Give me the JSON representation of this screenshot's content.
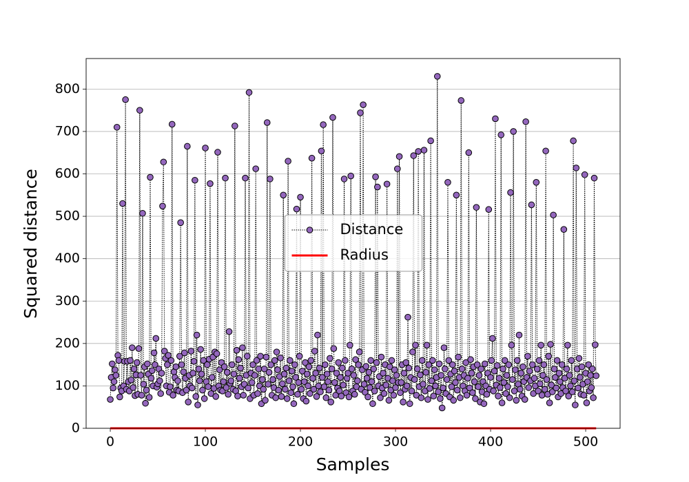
{
  "chart_data": {
    "type": "line",
    "xlabel": "Samples",
    "ylabel": "Squared distance",
    "xlim": [
      -25.4,
      536.2
    ],
    "ylim": [
      0,
      872
    ],
    "xticks": [
      0,
      100,
      200,
      300,
      400,
      500
    ],
    "yticks": [
      0,
      100,
      200,
      300,
      400,
      500,
      600,
      700,
      800
    ],
    "grid": "y",
    "legend": "center",
    "series": [
      {
        "name": "Distance",
        "color": "#9467bd",
        "line_color": "#000000",
        "marker": "o",
        "values": [
          68,
          120,
          152,
          95,
          110,
          138,
          125,
          710,
          172,
          160,
          74,
          95,
          88,
          530,
          100,
          158,
          775,
          92,
          158,
          110,
          88,
          160,
          114,
          190,
          96,
          140,
          77,
          126,
          155,
          80,
          188,
          750,
          125,
          78,
          507,
          104,
          145,
          59,
          90,
          152,
          128,
          73,
          592,
          118,
          136,
          100,
          178,
          150,
          212,
          97,
          105,
          140,
          112,
          82,
          130,
          524,
          628,
          182,
          165,
          100,
          150,
          172,
          85,
          98,
          160,
          717,
          78,
          133,
          120,
          145,
          90,
          112,
          88,
          170,
          485,
          150,
          84,
          133,
          178,
          118,
          90,
          665,
          62,
          125,
          100,
          182,
          95,
          130,
          158,
          585,
          75,
          220,
          55,
          140,
          112,
          186,
          128,
          90,
          160,
          70,
          661,
          110,
          150,
          98,
          163,
          577,
          82,
          120,
          168,
          94,
          180,
          75,
          176,
          651,
          100,
          138,
          90,
          155,
          88,
          110,
          145,
          590,
          96,
          132,
          80,
          228,
          106,
          112,
          150,
          92,
          128,
          713,
          88,
          184,
          76,
          162,
          118,
          142,
          98,
          190,
          78,
          104,
          590,
          125,
          170,
          95,
          792,
          70,
          130,
          108,
          150,
          78,
          125,
          612,
          160,
          82,
          140,
          100,
          170,
          58,
          115,
          92,
          140,
          66,
          168,
          721,
          104,
          132,
          588,
          150,
          78,
          115,
          96,
          160,
          72,
          180,
          138,
          90,
          122,
          166,
          75,
          105,
          550,
          128,
          92,
          142,
          70,
          630,
          112,
          160,
          84,
          135,
          98,
          58,
          150,
          120,
          517,
          80,
          108,
          170,
          545,
          92,
          135,
          70,
          110,
          155,
          64,
          128,
          100,
          145,
          82,
          160,
          637,
          118,
          92,
          182,
          130,
          75,
          220,
          100,
          142,
          86,
          654,
          120,
          716,
          98,
          150,
          72,
          128,
          110,
          90,
          165,
          62,
          140,
          733,
          188,
          108,
          78,
          130,
          95,
          155,
          88,
          120,
          76,
          142,
          102,
          588,
          160,
          84,
          118,
          130,
          74,
          196,
          595,
          140,
          88,
          125,
          80,
          162,
          98,
          112,
          150,
          180,
          744,
          92,
          138,
          763,
          104,
          85,
          146,
          118,
          74,
          132,
          96,
          160,
          110,
          58,
          140,
          88,
          593,
          155,
          569,
          100,
          122,
          72,
          168,
          95,
          130,
          82,
          150,
          102,
          576,
          118,
          66,
          145,
          90,
          160,
          112,
          78,
          138,
          96,
          125,
          612,
          108,
          641,
          84,
          108,
          150,
          62,
          130,
          92,
          155,
          100,
          262,
          142,
          58,
          120,
          88,
          180,
          643,
          115,
          196,
          78,
          140,
          653,
          98,
          126,
          72,
          160,
          104,
          656,
          88,
          132,
          196,
          68,
          150,
          94,
          678,
          112,
          160,
          76,
          138,
          100,
          120,
          830,
          86,
          152,
          70,
          125,
          48,
          95,
          190,
          140,
          82,
          115,
          580,
          160,
          74,
          128,
          98,
          150,
          66,
          135,
          108,
          550,
          90,
          168,
          120,
          72,
          773,
          140,
          100,
          125,
          88,
          155,
          78,
          118,
          650,
          95,
          162,
          130,
          84,
          145,
          110,
          70,
          521,
          150,
          98,
          125,
          62,
          140,
          86,
          110,
          58,
          152,
          100,
          80,
          130,
          516,
          92,
          120,
          160,
          212,
          88,
          135,
          730,
          102,
          148,
          76,
          118,
          96,
          692,
          60,
          140,
          108,
          160,
          82,
          125,
          98,
          150,
          72,
          556,
          196,
          115,
          700,
          88,
          138,
          66,
          160,
          104,
          220,
          92,
          130,
          76,
          145,
          110,
          68,
          723,
          120,
          170,
          96,
          135,
          112,
          527,
          150,
          82,
          118,
          100,
          580,
          140,
          88,
          160,
          105,
          196,
          78,
          125,
          150,
          92,
          654,
          115,
          80,
          170,
          60,
          198,
          102,
          86,
          503,
          140,
          120,
          95,
          160,
          74,
          130,
          110,
          82,
          150,
          96,
          469,
          118,
          88,
          140,
          196,
          76,
          125,
          100,
          160,
          86,
          678,
          112,
          55,
          614,
          140,
          95,
          165,
          120,
          80,
          145,
          104,
          78,
          598,
          130,
          60,
          110,
          150,
          88,
          125,
          96,
          140,
          72,
          590,
          197,
          124
        ]
      },
      {
        "name": "Radius",
        "color": "#ff0000",
        "x": [
          0,
          511
        ],
        "values": [
          0,
          0
        ]
      }
    ]
  }
}
